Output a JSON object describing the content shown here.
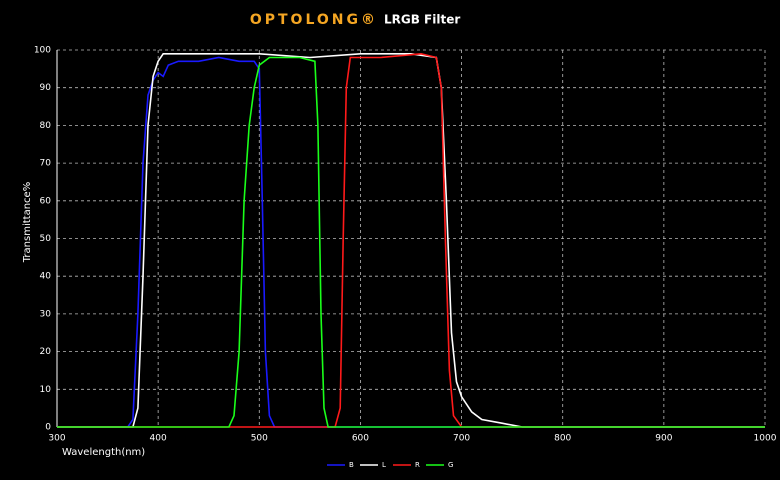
{
  "chart_data": {
    "type": "line",
    "brand": "OPTOLONG®",
    "title": "LRGB Filter",
    "x_label": "Wavelength(nm)",
    "y_label": "Transmittance%",
    "xlim": [
      300,
      1000
    ],
    "xticks": [
      300,
      400,
      500,
      600,
      700,
      800,
      900,
      1000
    ],
    "ylim": [
      0,
      100
    ],
    "yticks": [
      0,
      10,
      20,
      30,
      40,
      50,
      60,
      70,
      80,
      90,
      100
    ],
    "grid": true,
    "legend": "bottom",
    "series": [
      {
        "name": "B",
        "color": "#1a1aff",
        "x": [
          300,
          370,
          375,
          380,
          385,
          390,
          395,
          400,
          405,
          410,
          420,
          440,
          460,
          480,
          495,
          500,
          503,
          506,
          510,
          515,
          1000
        ],
        "values": [
          0,
          0,
          2,
          30,
          70,
          88,
          92,
          94,
          93,
          96,
          97,
          97,
          98,
          97,
          97,
          95,
          60,
          20,
          3,
          0,
          0
        ]
      },
      {
        "name": "L",
        "color": "#ffffff",
        "x": [
          300,
          375,
          380,
          385,
          390,
          395,
          400,
          405,
          450,
          500,
          550,
          600,
          650,
          675,
          680,
          685,
          690,
          695,
          700,
          710,
          720,
          740,
          760,
          1000
        ],
        "values": [
          0,
          0,
          5,
          40,
          80,
          93,
          97,
          99,
          99,
          99,
          98,
          99,
          99,
          98,
          90,
          60,
          25,
          12,
          8,
          4,
          2,
          1,
          0,
          0
        ]
      },
      {
        "name": "R",
        "color": "#ff1a1a",
        "x": [
          300,
          575,
          580,
          583,
          586,
          590,
          620,
          660,
          675,
          680,
          684,
          688,
          692,
          700,
          1000
        ],
        "values": [
          0,
          0,
          5,
          50,
          90,
          98,
          98,
          99,
          98,
          90,
          50,
          15,
          3,
          0,
          0
        ]
      },
      {
        "name": "G",
        "color": "#1aff1a",
        "x": [
          300,
          470,
          475,
          480,
          485,
          490,
          495,
          500,
          510,
          540,
          555,
          558,
          561,
          564,
          568,
          1000
        ],
        "values": [
          0,
          0,
          3,
          20,
          60,
          80,
          90,
          96,
          98,
          98,
          97,
          80,
          30,
          5,
          0,
          0
        ]
      }
    ]
  }
}
